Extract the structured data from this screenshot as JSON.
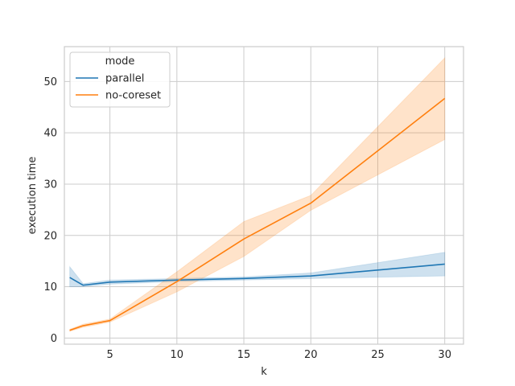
{
  "chart_data": {
    "type": "line",
    "xlabel": "k",
    "ylabel": "execution time",
    "xlim": [
      1.6,
      31.4
    ],
    "ylim": [
      -1.2,
      56.8
    ],
    "xticks": [
      5,
      10,
      15,
      20,
      25,
      30
    ],
    "yticks": [
      0,
      10,
      20,
      30,
      40,
      50
    ],
    "grid": true,
    "legend": {
      "title": "mode",
      "placement": "top-left"
    },
    "series": [
      {
        "name": "parallel",
        "color": "#1f77b4",
        "x": [
          2,
          3,
          5,
          10,
          15,
          20,
          30
        ],
        "y": [
          11.8,
          10.3,
          10.9,
          11.3,
          11.6,
          12.1,
          14.4
        ],
        "ci_low": [
          10.0,
          10.0,
          10.5,
          11.0,
          11.3,
          11.6,
          12.1
        ],
        "ci_high": [
          13.9,
          10.6,
          11.3,
          11.6,
          11.9,
          12.7,
          16.7
        ]
      },
      {
        "name": "no-coreset",
        "color": "#ff7f0e",
        "x": [
          2,
          3,
          5,
          10,
          15,
          20,
          30
        ],
        "y": [
          1.5,
          2.4,
          3.4,
          11.0,
          19.3,
          26.3,
          46.7
        ],
        "ci_low": [
          1.3,
          2.1,
          3.1,
          9.0,
          15.9,
          24.9,
          38.7
        ],
        "ci_high": [
          1.7,
          2.7,
          3.7,
          12.9,
          22.7,
          27.8,
          54.6
        ]
      }
    ]
  }
}
